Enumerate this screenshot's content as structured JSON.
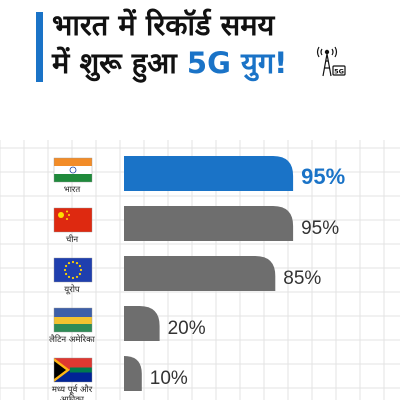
{
  "headline": {
    "line1": "भारत में रिकॉर्ड समय",
    "line2_prefix": "में शुरू हुआ ",
    "line2_accent": "5G युग!"
  },
  "icon": {
    "name": "5g-tower-icon",
    "badge": "5G"
  },
  "colors": {
    "highlight": "#1a73c7",
    "bar": "#6e6e6e",
    "text": "#111111",
    "grid": "#e3e3e3"
  },
  "chart_data": {
    "type": "bar",
    "orientation": "horizontal",
    "categories": [
      "भारत",
      "चीन",
      "यूरोप",
      "लैटिन अमेरिका",
      "मध्य पूर्व और अफ्रीका"
    ],
    "values": [
      95,
      95,
      85,
      20,
      10
    ],
    "value_labels": [
      "95%",
      "95%",
      "85%",
      "20%",
      "10%"
    ],
    "highlight_index": 0,
    "flags": [
      "india-flag-icon",
      "china-flag-icon",
      "eu-flag-icon",
      "latin-america-flag-icon",
      "south-africa-flag-icon"
    ],
    "xlim": [
      0,
      100
    ],
    "grid": true
  }
}
